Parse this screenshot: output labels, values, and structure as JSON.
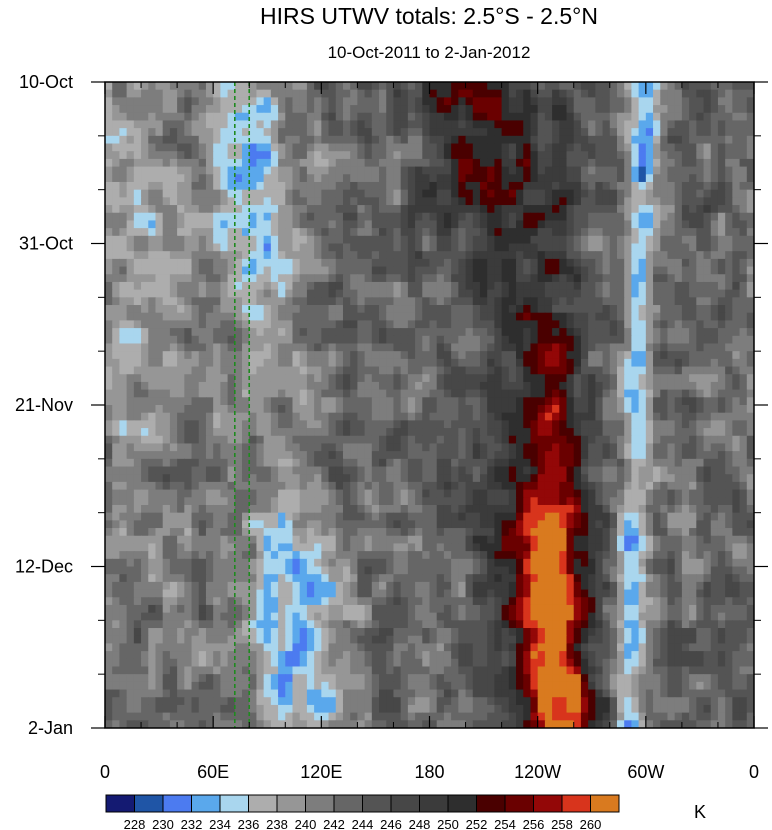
{
  "chart_data": {
    "type": "heatmap",
    "title": "HIRS UTWV totals: 2.5°S - 2.5°N",
    "subtitle": "10-Oct-2011 to 2-Jan-2012",
    "x_ticks": [
      "0",
      "60E",
      "120E",
      "180",
      "120W",
      "60W",
      "0"
    ],
    "x_tick_values": [
      0,
      60,
      120,
      180,
      240,
      300,
      360
    ],
    "y_ticks": [
      "10-Oct",
      "31-Oct",
      "21-Nov",
      "12-Dec",
      "2-Jan"
    ],
    "y_tick_values": [
      0,
      21,
      42,
      63,
      84
    ],
    "xlim": [
      0,
      360
    ],
    "ylim": [
      0,
      84
    ],
    "colorbar_levels": [
      "228",
      "230",
      "232",
      "234",
      "236",
      "238",
      "240",
      "242",
      "244",
      "246",
      "248",
      "250",
      "252",
      "254",
      "256",
      "258",
      "260"
    ],
    "colorbar_colors": [
      "#141a72",
      "#1f55a6",
      "#4c7bf0",
      "#5aa8ec",
      "#a9d6ee",
      "#adadad",
      "#969696",
      "#7d7d7d",
      "#666666",
      "#545454",
      "#474747",
      "#3b3b3b",
      "#2e2e2e",
      "#4a0000",
      "#6a0000",
      "#930707",
      "#d8341c",
      "#d97a1f"
    ],
    "colorbar_unit": "K",
    "reference_lines_longitude": [
      72,
      80
    ],
    "reference_line_color": "#1f8a1f"
  }
}
